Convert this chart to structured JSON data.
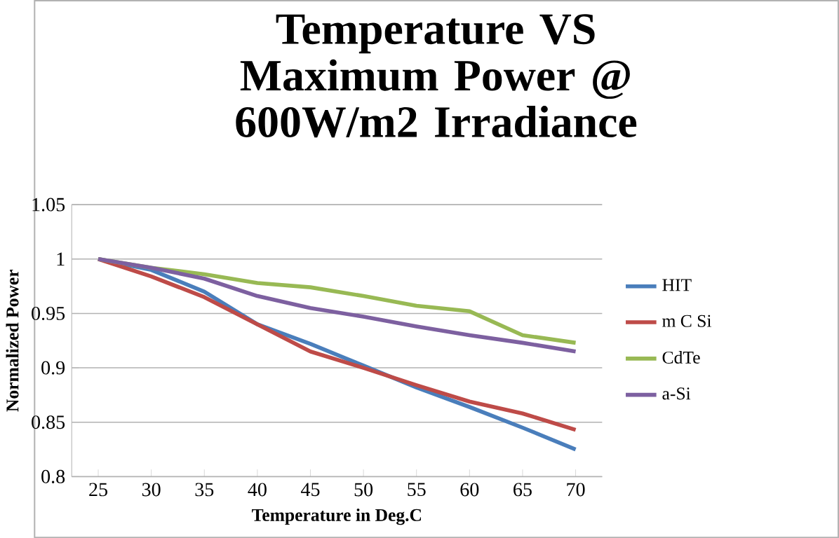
{
  "chart_data": {
    "type": "line",
    "title": "Temperature VS Maximum Power @ 600W/m2 Irradiance",
    "xlabel": "Temperature in Deg.C",
    "ylabel": "Normalized Power",
    "categories": [
      "25",
      "30",
      "35",
      "40",
      "45",
      "50",
      "55",
      "60",
      "65",
      "70"
    ],
    "series": [
      {
        "name": "HIT",
        "color": "#4a7ebb",
        "values": [
          1.0,
          0.99,
          0.97,
          0.94,
          0.922,
          0.902,
          0.882,
          0.864,
          0.845,
          0.825
        ]
      },
      {
        "name": "m C Si",
        "color": "#be4b48",
        "values": [
          1.0,
          0.984,
          0.965,
          0.94,
          0.915,
          0.9,
          0.884,
          0.869,
          0.858,
          0.843
        ]
      },
      {
        "name": "CdTe",
        "color": "#98b954",
        "values": [
          1.0,
          0.992,
          0.986,
          0.978,
          0.974,
          0.966,
          0.957,
          0.952,
          0.93,
          0.923
        ]
      },
      {
        "name": "a-Si",
        "color": "#7d60a0",
        "values": [
          1.0,
          0.992,
          0.982,
          0.966,
          0.955,
          0.947,
          0.938,
          0.93,
          0.923,
          0.915
        ]
      }
    ],
    "ylim": [
      0.8,
      1.05
    ],
    "yticks": [
      0.8,
      0.85,
      0.9,
      0.95,
      1,
      1.05
    ],
    "grid": "y",
    "legend": "right",
    "marker": "none",
    "line_style": "solid"
  }
}
